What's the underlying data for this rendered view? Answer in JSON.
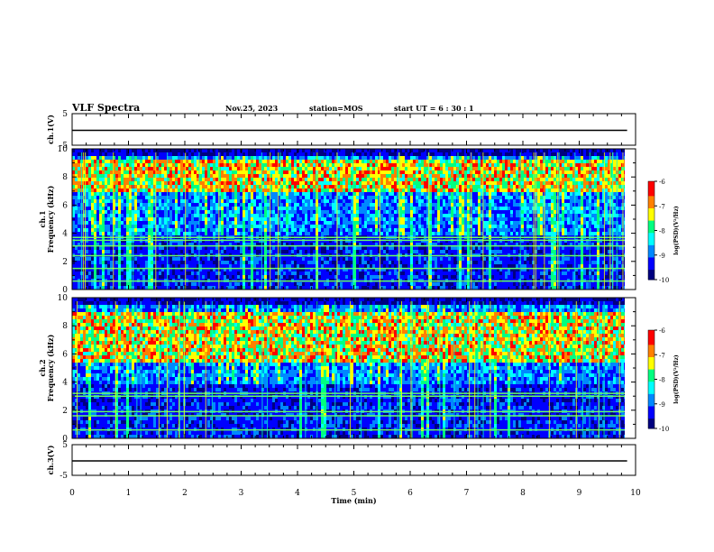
{
  "header": {
    "title": "VLF Spectra",
    "date": "Nov.25, 2023",
    "station": "station=MOS",
    "start_ut": "start  UT =   6 : 30 : 1"
  },
  "colors": {
    "background": "#000080",
    "palette": [
      "#000080",
      "#0000ff",
      "#0088ff",
      "#00ffff",
      "#00ff80",
      "#ffff00",
      "#ff8000",
      "#ff0000"
    ]
  },
  "chart_data": [
    {
      "type": "line",
      "panel": "ch1-waveform",
      "ylabel": "ch.1(V)",
      "ylim": [
        -5,
        5
      ],
      "yticks": [
        "5",
        "-5"
      ],
      "x": [
        0,
        9.85
      ],
      "y": [
        -0.3,
        -0.3
      ]
    },
    {
      "type": "heatmap",
      "panel": "ch1-spectrogram",
      "ylabel_line1": "ch.1",
      "ylabel_line2": "Frequency (kHz)",
      "ylim": [
        0,
        10
      ],
      "yticks": [
        "0",
        "2",
        "4",
        "6",
        "8",
        "10"
      ],
      "xlim": [
        0,
        9.85
      ],
      "colorbar_label": "log(PSD)(V²/Hz)",
      "colorbar_ticks": [
        "-6",
        "-7",
        "-8",
        "-9",
        "-10"
      ],
      "colorbar_range": [
        -10,
        -6
      ],
      "intense_band_khz": [
        7,
        9.3
      ],
      "narrowband_lines_khz": [
        0.6,
        1.5,
        2.4,
        3.1,
        3.5,
        3.7
      ]
    },
    {
      "type": "heatmap",
      "panel": "ch2-spectrogram",
      "ylabel_line1": "ch.2",
      "ylabel_line2": "Frequency (kHz)",
      "ylim": [
        0,
        10
      ],
      "yticks": [
        "0",
        "2",
        "4",
        "6",
        "8",
        "10"
      ],
      "xlim": [
        0,
        9.85
      ],
      "colorbar_label": "log(PSD)(V²/Hz)",
      "colorbar_ticks": [
        "-6",
        "-7",
        "-8",
        "-9",
        "-10"
      ],
      "colorbar_range": [
        -10,
        -6
      ],
      "intense_band_khz": [
        5.5,
        9
      ],
      "narrowband_lines_khz": [
        0.6,
        1.6,
        1.9,
        3.0,
        3.2
      ]
    },
    {
      "type": "line",
      "panel": "ch3-waveform",
      "ylabel": "ch.3(V)",
      "ylim": [
        -5,
        5
      ],
      "yticks": [
        "5",
        "-5"
      ],
      "x": [
        0,
        9.85
      ],
      "y": [
        -0.3,
        -0.3
      ]
    }
  ],
  "xaxis": {
    "label": "Time (min)",
    "xlim": [
      0,
      10
    ],
    "ticks": [
      "0",
      "1",
      "2",
      "3",
      "4",
      "5",
      "6",
      "7",
      "8",
      "9",
      "10"
    ]
  }
}
